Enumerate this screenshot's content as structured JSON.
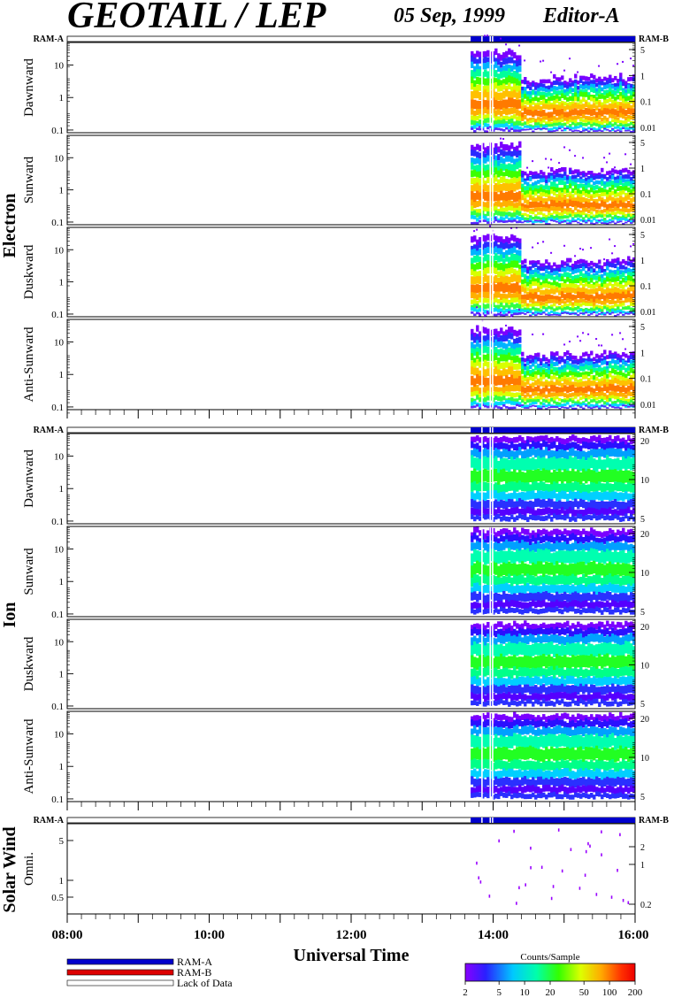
{
  "header": {
    "title": "GEOTAIL / LEP",
    "date": "05 Sep, 1999",
    "editor": "Editor-A"
  },
  "labels": {
    "ram_a": "RAM-A",
    "ram_b": "RAM-B",
    "electron": "Electron",
    "ion": "Ion",
    "solar_wind": "Solar Wind",
    "xlabel": "Universal Time"
  },
  "legend": {
    "ram_a": "RAM-A",
    "ram_b": "RAM-B",
    "lack": "Lack of Data",
    "colors": {
      "ram_a": "#0000cc",
      "ram_b": "#dd0000",
      "lack": "#ffffff"
    }
  },
  "colorbar": {
    "title": "Counts/Sample",
    "ticks": [
      "2",
      "5",
      "10",
      "20",
      "50",
      "100",
      "200"
    ],
    "values": [
      2,
      5,
      10,
      20,
      50,
      100,
      200
    ]
  },
  "chart_data": {
    "type": "heatmap",
    "x_axis": {
      "range": [
        "08:00",
        "16:00"
      ],
      "tick_labels": [
        "08:00",
        "10:00",
        "12:00",
        "14:00",
        "16:00"
      ]
    },
    "data_start": "13:41",
    "data_gaps": [
      "13:50",
      "13:57",
      "13:59"
    ],
    "groups": [
      {
        "name": "Electron",
        "panels": [
          {
            "label": "Dawnward",
            "left_ticks": [
              "10",
              "1",
              "0.1"
            ],
            "right_ticks": [
              "5",
              "1",
              "0.1",
              "0.01"
            ]
          },
          {
            "label": "Sunward",
            "left_ticks": [
              "10",
              "1",
              "0.1"
            ],
            "right_ticks": [
              "5",
              "1",
              "0.1",
              "0.01"
            ]
          },
          {
            "label": "Duskward",
            "left_ticks": [
              "10",
              "1",
              "0.1"
            ],
            "right_ticks": [
              "5",
              "1",
              "0.1",
              "0.01"
            ]
          },
          {
            "label": "Anti-Sunward",
            "left_ticks": [
              "10",
              "1",
              "0.1"
            ],
            "right_ticks": [
              "5",
              "1",
              "0.1",
              "0.01"
            ]
          }
        ]
      },
      {
        "name": "Ion",
        "panels": [
          {
            "label": "Dawnward",
            "left_ticks": [
              "10",
              "1",
              "0.1"
            ],
            "right_ticks": [
              "20",
              "10",
              "5"
            ]
          },
          {
            "label": "Sunward",
            "left_ticks": [
              "10",
              "1",
              "0.1"
            ],
            "right_ticks": [
              "20",
              "10",
              "5"
            ]
          },
          {
            "label": "Duskward",
            "left_ticks": [
              "10",
              "1",
              "0.1"
            ],
            "right_ticks": [
              "20",
              "10",
              "5"
            ]
          },
          {
            "label": "Anti-Sunward",
            "left_ticks": [
              "10",
              "1",
              "0.1"
            ],
            "right_ticks": [
              "20",
              "10",
              "5"
            ]
          }
        ]
      },
      {
        "name": "Solar Wind",
        "panels": [
          {
            "label": "Omni.",
            "left_ticks": [
              "5",
              "1",
              "0.5"
            ],
            "right_ticks": [
              "2",
              "1",
              "0.2"
            ]
          }
        ]
      }
    ]
  }
}
